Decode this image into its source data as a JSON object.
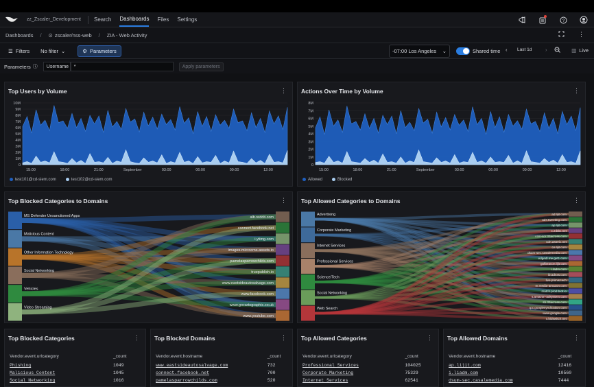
{
  "nav": {
    "org": "zz_Zscaler_Development",
    "links": [
      "Search",
      "Dashboards",
      "Files",
      "Settings"
    ]
  },
  "breadcrumb": {
    "root": "Dashboards",
    "repo": "zscaler/nss-web",
    "dashboard": "ZIA - Web Activity"
  },
  "toolbar": {
    "filters": "Filters",
    "filter_value": "No filter",
    "parameters": "Parameters",
    "timezone": "-07:00 Los Angeles",
    "shared_time": "Shared time",
    "range": "Last 1d",
    "live": "Live"
  },
  "params": {
    "label": "Parameters",
    "username_label": "Username",
    "username_value": "*",
    "apply": "Apply parameters"
  },
  "colors": {
    "series1": "#1f5fbf",
    "series2": "#a9cdf0",
    "accent": "#2a7de1"
  },
  "panels": {
    "top_users": {
      "title": "Top Users by Volume",
      "legend": [
        "test101@cd-siem.com",
        "test102@cd-siem.com"
      ]
    },
    "actions": {
      "title": "Actions Over Time by Volume",
      "legend": [
        "Allowed",
        "Blocked"
      ]
    },
    "blocked_sankey": {
      "title": "Top Blocked Categories to Domains",
      "left": [
        "MS Defender Unsanctioned Apps",
        "Malicious Content",
        "Other Information Technology",
        "Social Networking",
        "Vehicles",
        "Video Streaming"
      ],
      "right": [
        "alb.reddit.com",
        "connect.facebook.net",
        "i.ytimg.com",
        "images.microcms-assets.io",
        "pamelasparrowchilds.com",
        "truepublish.io",
        "www.eastsideautosalvage.com",
        "www.facebook.com",
        "www.gocartographic.co.uk",
        "www.youtube.com"
      ]
    },
    "allowed_sankey": {
      "title": "Top Allowed Categories to Domains",
      "left": [
        "Advertising",
        "Corporate Marketing",
        "Internet Services",
        "Professional Services",
        "Science/Tech",
        "Social Networking",
        "Web Search"
      ],
      "right": [
        "ad.lijit.com",
        "ads.tweeting.com",
        "ap.lijit.com",
        "c.3.bbc.net",
        "ccm-scr.33across.com",
        "cdn.asteric.net",
        "ce.lijit.com",
        "dsum-sec.casalemedia.com",
        "edgedl.me.gvt1.com",
        "gofbeacon.lijit.com",
        "i.ladm.com",
        "ib.adnxs.com",
        "live.primis.tech",
        "m.media-amazon.com",
        "match.prod.bidr.io",
        "s.amazon-adsystem.com",
        "sb.33across.com",
        "tpc.googlesyndication.com",
        "www.google.com",
        "x.bidswitch.net"
      ]
    },
    "blocked_categories": {
      "title": "Top Blocked Categories",
      "headers": [
        "Vendor.event.urlcategory",
        "_count"
      ],
      "rows": [
        [
          "Phishing",
          "1049"
        ],
        [
          "Malicious Content",
          "1045"
        ],
        [
          "Social Networking",
          "1016"
        ]
      ]
    },
    "blocked_domains": {
      "title": "Top Blocked Domains",
      "headers": [
        "Vendor.event.hostname",
        "_count"
      ],
      "rows": [
        [
          "www.eastsideautosalvage.com",
          "732"
        ],
        [
          "connect.facebook.net",
          "700"
        ],
        [
          "pamelasparrowchilds.com",
          "520"
        ]
      ]
    },
    "allowed_categories": {
      "title": "Top Allowed Categories",
      "headers": [
        "Vendor.event.urlcategory",
        "_count"
      ],
      "rows": [
        [
          "Professional Services",
          "104025"
        ],
        [
          "Corporate Marketing",
          "75329"
        ],
        [
          "Internet Services",
          "62541"
        ]
      ]
    },
    "allowed_domains": {
      "title": "Top Allowed Domains",
      "headers": [
        "Vendor.event.hostname",
        "_count"
      ],
      "rows": [
        [
          "ap.lijit.com",
          "12416"
        ],
        [
          "i.liadm.com",
          "10560"
        ],
        [
          "dsum-sec.casalemedia.com",
          "7444"
        ]
      ]
    }
  },
  "chart_data": [
    {
      "type": "area",
      "title": "Top Users by Volume",
      "y_ticks": [
        "0",
        "1M",
        "2M",
        "3M",
        "4M",
        "5M",
        "6M",
        "7M",
        "8M",
        "9M",
        "10M"
      ],
      "x_ticks": [
        "15:00",
        "18:00",
        "21:00",
        "September",
        "03:00",
        "06:00",
        "09:00",
        "12:00"
      ],
      "ylim": [
        0,
        10
      ],
      "series": [
        {
          "name": "test101@cd-siem.com",
          "values": [
            6.2,
            7.8,
            5.1,
            8.9,
            6.4,
            7.2,
            5.5,
            9.6,
            6.8,
            7.1,
            5.9,
            8.3,
            6.0,
            7.5,
            5.4,
            8.0,
            6.6,
            7.9,
            5.2,
            8.8,
            6.1,
            7.0,
            5.7,
            9.1,
            6.9,
            7.4,
            5.3,
            8.5,
            6.3,
            7.7,
            5.8,
            8.2,
            6.5,
            7.3,
            5.6,
            9.4,
            6.7,
            7.6,
            5.0,
            8.6,
            6.2,
            7.8,
            5.4,
            8.1,
            6.4,
            7.2,
            5.9,
            9.0,
            6.8,
            7.1,
            5.5,
            8.4,
            6.0,
            7.5,
            5.2,
            8.7,
            6.6,
            7.9,
            5.7,
            9.3
          ]
        },
        {
          "name": "test102@cd-siem.com",
          "values": [
            0.3,
            0.5,
            0.2,
            1.4,
            0.4,
            0.6,
            0.3,
            2.1,
            0.5,
            0.4,
            0.2,
            1.0,
            0.3,
            0.7,
            0.2,
            1.8,
            0.4,
            0.5,
            0.3,
            1.2,
            0.2,
            0.6,
            0.4,
            2.4,
            0.5,
            0.3,
            0.2,
            1.1,
            0.4,
            0.6,
            0.3,
            1.6,
            0.2,
            0.5,
            0.3,
            2.0,
            0.4,
            0.6,
            0.2,
            1.3,
            0.3,
            0.5,
            0.4,
            1.5,
            0.2,
            0.6,
            0.3,
            2.2,
            0.5,
            0.4,
            0.2,
            1.0,
            0.3,
            0.7,
            0.2,
            1.7,
            0.4,
            0.5,
            0.3,
            2.3
          ]
        }
      ]
    },
    {
      "type": "area",
      "title": "Actions Over Time by Volume",
      "y_ticks": [
        "0",
        "1M",
        "2M",
        "3M",
        "4M",
        "5M",
        "6M",
        "7M",
        "8M"
      ],
      "x_ticks": [
        "15:00",
        "18:00",
        "21:00",
        "September",
        "03:00",
        "06:00",
        "09:00",
        "12:00"
      ],
      "ylim": [
        0,
        8
      ],
      "series": [
        {
          "name": "Allowed",
          "values": [
            4.8,
            6.2,
            3.9,
            7.1,
            5.0,
            5.8,
            4.2,
            7.6,
            5.3,
            5.6,
            4.5,
            6.6,
            4.7,
            6.0,
            4.1,
            6.4,
            5.2,
            6.3,
            4.0,
            7.0,
            4.8,
            5.5,
            4.4,
            7.3,
            5.4,
            5.9,
            4.1,
            6.8,
            4.9,
            6.1,
            4.5,
            6.5,
            5.1,
            5.8,
            4.3,
            7.5,
            5.2,
            6.0,
            3.9,
            6.9,
            4.8,
            6.2,
            4.2,
            6.5,
            5.0,
            5.7,
            4.6,
            7.2,
            5.3,
            5.6,
            4.3,
            6.7,
            4.7,
            6.0,
            4.0,
            6.9,
            5.2,
            6.3,
            4.4,
            7.4
          ]
        },
        {
          "name": "Blocked",
          "values": [
            0.3,
            0.4,
            0.2,
            1.1,
            0.3,
            0.5,
            0.2,
            1.7,
            0.4,
            0.3,
            0.2,
            0.8,
            0.3,
            0.6,
            0.2,
            1.4,
            0.3,
            0.4,
            0.2,
            1.0,
            0.2,
            0.5,
            0.3,
            1.9,
            0.4,
            0.3,
            0.2,
            0.9,
            0.3,
            0.5,
            0.2,
            1.3,
            0.2,
            0.4,
            0.3,
            1.6,
            0.3,
            0.5,
            0.2,
            1.0,
            0.3,
            0.4,
            0.3,
            1.2,
            0.2,
            0.5,
            0.2,
            1.8,
            0.4,
            0.3,
            0.2,
            0.8,
            0.3,
            0.6,
            0.2,
            1.3,
            0.3,
            0.4,
            0.2,
            1.8
          ]
        }
      ]
    }
  ]
}
